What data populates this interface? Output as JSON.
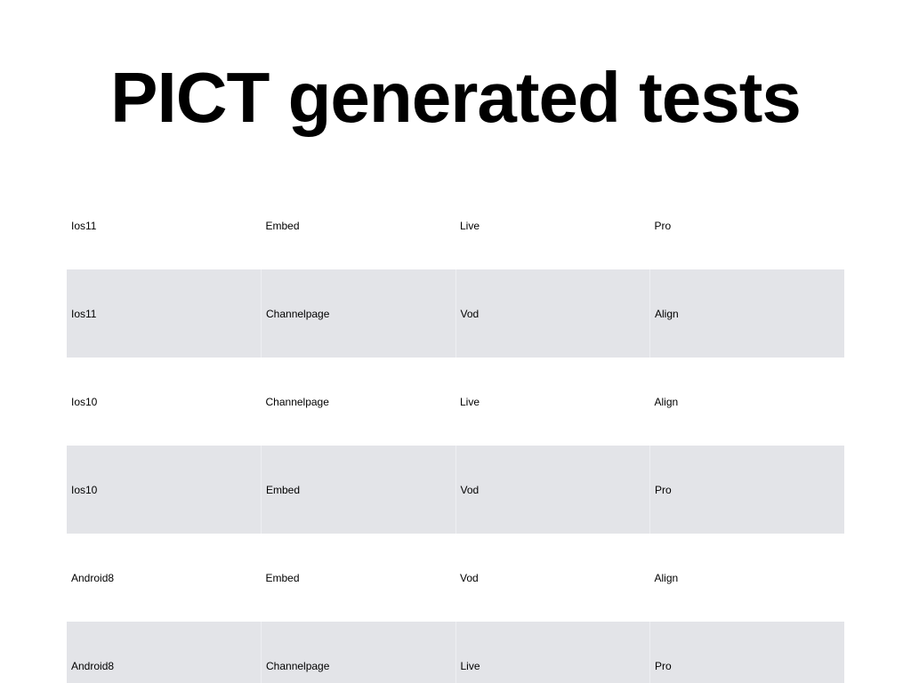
{
  "slide": {
    "title": "PICT generated tests"
  },
  "table": {
    "rows": [
      [
        "Ios11",
        "Embed",
        "Live",
        "Pro"
      ],
      [
        "Ios11",
        "Channelpage",
        "Vod",
        "Align"
      ],
      [
        "Ios10",
        "Channelpage",
        "Live",
        "Align"
      ],
      [
        "Ios10",
        "Embed",
        "Vod",
        "Pro"
      ],
      [
        "Android8",
        "Embed",
        "Vod",
        "Align"
      ],
      [
        "Android8",
        "Channelpage",
        "Live",
        "Pro"
      ]
    ],
    "shaded_row_color": "#e3e4e8"
  }
}
